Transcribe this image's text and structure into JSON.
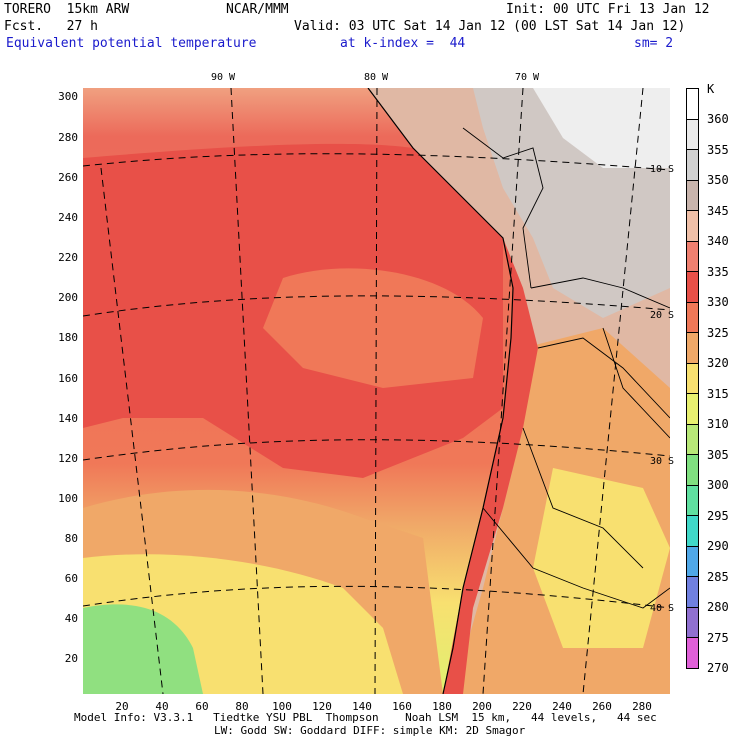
{
  "header": {
    "model": "TORERO  15km ARW",
    "org": "NCAR/MMM",
    "init": "Init: 00 UTC Fri 13 Jan 12",
    "fcst": "Fcst.   27 h",
    "valid": "Valid: 03 UTC Sat 14 Jan 12 (00 LST Sat 14 Jan 12)",
    "field": "Equivalent potential temperature",
    "level": "at k-index =  44",
    "smooth": "sm= 2"
  },
  "axes": {
    "y_ticks": [
      "300",
      "280",
      "260",
      "240",
      "220",
      "200",
      "180",
      "160",
      "140",
      "120",
      "100",
      "80",
      "60",
      "40",
      "20"
    ],
    "x_ticks": [
      "20",
      "40",
      "60",
      "80",
      "100",
      "120",
      "140",
      "160",
      "180",
      "200",
      "220",
      "240",
      "260",
      "280"
    ]
  },
  "map": {
    "longitude_labels": [
      "90 W",
      "80 W",
      "70 W"
    ],
    "latitude_labels": [
      "10 S",
      "20 S",
      "30 S",
      "40 S"
    ]
  },
  "colorbar": {
    "unit": "K",
    "levels": [
      "360",
      "355",
      "350",
      "345",
      "340",
      "335",
      "330",
      "325",
      "320",
      "315",
      "310",
      "305",
      "300",
      "295",
      "290",
      "285",
      "280",
      "275",
      "270"
    ],
    "colors": [
      "#ffffff",
      "#eaeaea",
      "#d2d2d2",
      "#c8b4ac",
      "#f0c0a8",
      "#f08070",
      "#e85048",
      "#f07858",
      "#f0a868",
      "#f8e070",
      "#e8f070",
      "#b8e878",
      "#80e080",
      "#60e0a0",
      "#40d8c8",
      "#50a8e8",
      "#7080e0",
      "#9070d0",
      "#e060d8"
    ]
  },
  "footer": {
    "line1": "Model Info: V3.3.1   Tiedtke YSU PBL  Thompson    Noah LSM  15 km,   44 levels,   44 sec",
    "line2": "LW: Godd SW: Goddard DIFF: simple KM: 2D Smagor"
  }
}
